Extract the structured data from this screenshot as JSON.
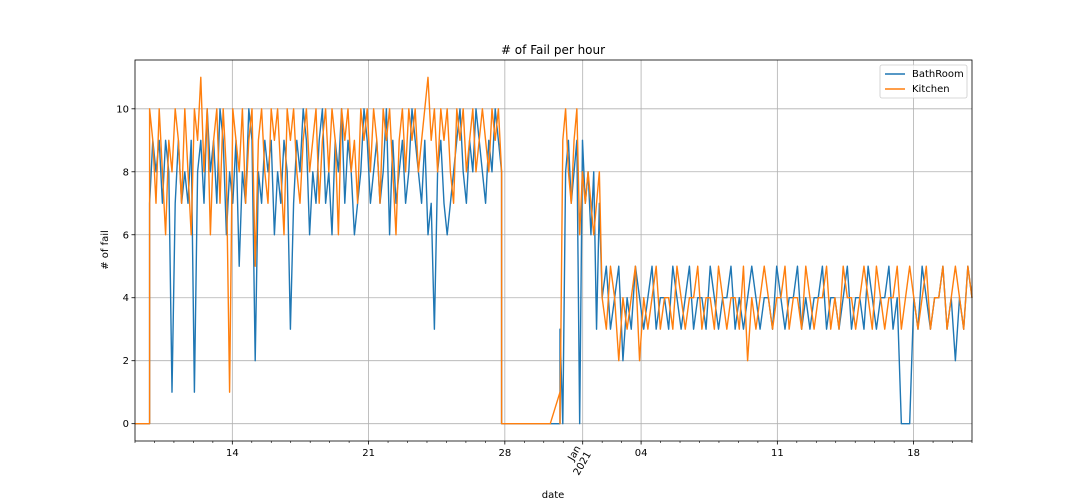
{
  "chart_data": {
    "type": "line",
    "title": "# of Fail per hour",
    "xlabel": "date",
    "ylabel": "# of fail",
    "x_range": [
      "2020-12-09",
      "2021-01-21"
    ],
    "ylim": [
      -0.55,
      11.55
    ],
    "y_ticks": [
      0,
      2,
      4,
      6,
      8,
      10
    ],
    "x_major_ticks": [
      {
        "date": "2020-12-14",
        "label": "14"
      },
      {
        "date": "2020-12-21",
        "label": "21"
      },
      {
        "date": "2020-12-28",
        "label": "28"
      },
      {
        "date": "2021-01-01",
        "label": "Jan\n2021"
      },
      {
        "date": "2021-01-04",
        "label": "04"
      },
      {
        "date": "2021-01-11",
        "label": "11"
      },
      {
        "date": "2021-01-18",
        "label": "18"
      }
    ],
    "grid": true,
    "legend": "top-right",
    "series": [
      {
        "name": "BathRoom",
        "color": "#1f77b4",
        "segments": [
          {
            "start": "2020-12-09",
            "end": "2020-12-09T18:00",
            "values": [
              0,
              0,
              0
            ]
          },
          {
            "start": "2020-12-09T18:00",
            "end": "2020-12-27T20:00",
            "values": [
              7,
              9,
              8,
              9,
              7,
              9,
              8,
              1,
              7,
              9,
              7,
              8,
              7,
              9,
              1,
              8,
              9,
              7,
              10,
              8,
              9,
              7,
              10,
              9,
              6,
              8,
              7,
              9,
              5,
              8,
              7,
              10,
              9,
              2,
              8,
              7,
              9,
              8,
              9,
              6,
              8,
              7,
              9,
              8,
              3,
              7,
              9,
              8,
              10,
              9,
              6,
              8,
              7,
              9,
              10,
              7,
              8,
              6,
              9,
              8,
              10,
              7,
              9,
              8,
              6,
              7,
              8,
              10,
              9,
              7,
              8,
              9,
              7,
              8,
              10,
              6,
              9,
              7,
              8,
              9,
              7,
              8,
              10,
              9,
              8,
              7,
              9,
              6,
              7,
              3,
              8,
              9,
              7,
              6,
              7,
              8,
              9,
              10,
              8,
              7,
              9,
              8,
              10,
              9,
              8,
              7,
              9,
              8,
              10,
              9,
              8
            ]
          },
          {
            "start": "2020-12-27T20:00",
            "end": "2020-12-30T20:00",
            "values": [
              0,
              0,
              0,
              0,
              0,
              0,
              0
            ]
          },
          {
            "start": "2020-12-30T20:00",
            "end": "2021-01-02T00:00",
            "values": [
              3,
              0,
              8,
              9,
              7,
              8,
              9,
              0,
              9,
              7,
              8,
              6,
              8,
              3,
              7,
              4
            ]
          },
          {
            "start": "2021-01-02T00:00",
            "end": "2021-01-21",
            "values": [
              4,
              5,
              3,
              4,
              5,
              2,
              4,
              3,
              5,
              4,
              3,
              4,
              5,
              3,
              4,
              4,
              3,
              5,
              4,
              3,
              4,
              5,
              3,
              4,
              4,
              3,
              5,
              4,
              3,
              4,
              4,
              5,
              3,
              4,
              3,
              4,
              5,
              4,
              3,
              4,
              4,
              3,
              5,
              4,
              3,
              4,
              4,
              5,
              3,
              4,
              3,
              4,
              4,
              5,
              3,
              4,
              4,
              3,
              4,
              5,
              3,
              4,
              4,
              3,
              5,
              4,
              3,
              4,
              4,
              5,
              3,
              4,
              0,
              0,
              0,
              4,
              3,
              5,
              4,
              3,
              4,
              4,
              5,
              3,
              4,
              2,
              4,
              3,
              5,
              4
            ]
          }
        ]
      },
      {
        "name": "Kitchen",
        "color": "#ff7f0e",
        "segments": [
          {
            "start": "2020-12-09",
            "end": "2020-12-09T18:00",
            "values": [
              0,
              0,
              0
            ]
          },
          {
            "start": "2020-12-09T18:00",
            "end": "2020-12-27T20:00",
            "values": [
              10,
              9,
              7,
              10,
              8,
              6,
              9,
              8,
              10,
              9,
              7,
              10,
              8,
              6,
              10,
              9,
              11,
              8,
              10,
              6,
              9,
              10,
              7,
              10,
              8,
              1,
              10,
              9,
              8,
              10,
              7,
              9,
              10,
              5,
              9,
              10,
              8,
              7,
              10,
              9,
              10,
              8,
              6,
              10,
              9,
              10,
              8,
              7,
              9,
              10,
              8,
              9,
              10,
              7,
              9,
              10,
              8,
              10,
              9,
              6,
              10,
              9,
              10,
              8,
              9,
              7,
              10,
              9,
              10,
              8,
              10,
              9,
              7,
              10,
              9,
              10,
              8,
              6,
              9,
              10,
              8,
              10,
              9,
              10,
              8,
              9,
              10,
              11,
              9,
              10,
              8,
              10,
              9,
              10,
              8,
              7,
              10,
              9,
              10,
              8,
              9,
              10,
              8,
              9,
              10,
              9,
              8,
              10,
              9,
              10,
              8
            ]
          },
          {
            "start": "2020-12-27T20:00",
            "end": "2020-12-30T20:00",
            "values": [
              0,
              0,
              0,
              0,
              0,
              0,
              1
            ]
          },
          {
            "start": "2020-12-30T20:00",
            "end": "2021-01-02T00:00",
            "values": [
              0,
              9,
              10,
              8,
              7,
              9,
              10,
              6,
              8,
              7,
              8,
              7,
              6,
              7,
              8,
              4
            ]
          },
          {
            "start": "2021-01-02T00:00",
            "end": "2021-01-21",
            "values": [
              4,
              3,
              5,
              4,
              2,
              4,
              3,
              4,
              5,
              2,
              4,
              3,
              4,
              5,
              3,
              4,
              4,
              3,
              5,
              4,
              3,
              4,
              4,
              5,
              3,
              4,
              4,
              3,
              5,
              4,
              3,
              4,
              4,
              3,
              5,
              2,
              4,
              3,
              4,
              5,
              4,
              3,
              4,
              4,
              5,
              3,
              4,
              4,
              3,
              5,
              4,
              3,
              4,
              4,
              5,
              3,
              4,
              3,
              5,
              4,
              4,
              3,
              4,
              5,
              4,
              3,
              5,
              4,
              3,
              4,
              4,
              5,
              3,
              4,
              5,
              4,
              3,
              4,
              5,
              3,
              4,
              4,
              5,
              3,
              4,
              5,
              4,
              3,
              5,
              4
            ]
          }
        ]
      }
    ]
  }
}
